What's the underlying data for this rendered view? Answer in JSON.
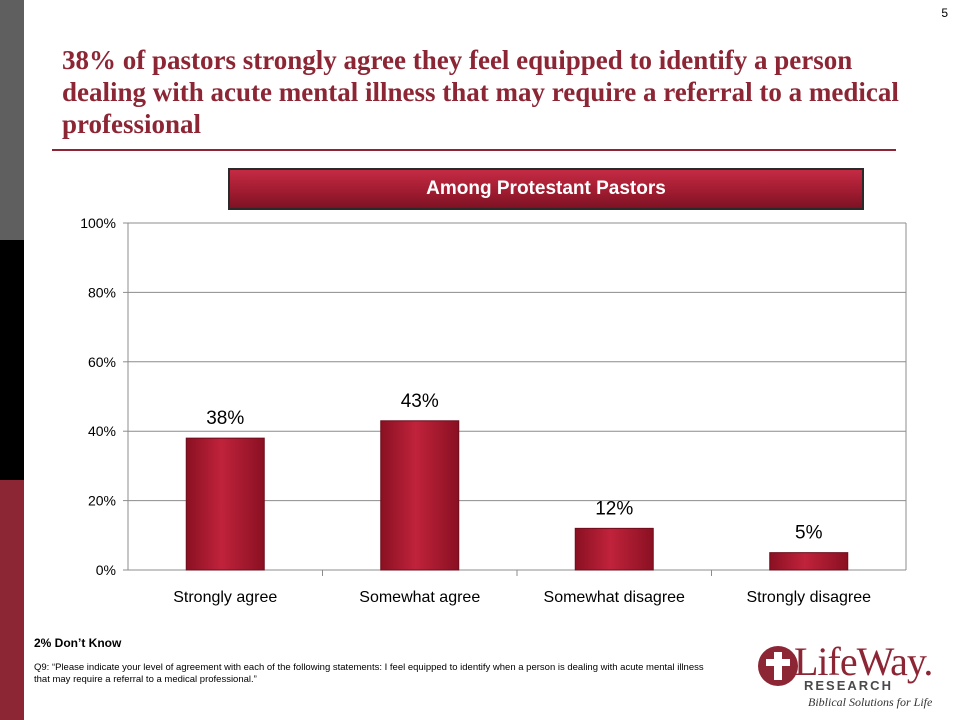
{
  "page_number": "5",
  "title": "38% of pastors strongly agree they feel equipped to identify a person dealing with acute mental illness that may require a referral to a medical professional",
  "banner": "Among Protestant Pastors",
  "footnote": "2% Don’t Know",
  "question": "Q9: “Please indicate your level of agreement with each of the following statements: I feel equipped to identify when a person is dealing with acute mental illness that may require a referral to a medical professional.”",
  "logo": {
    "name": "LifeWay.",
    "sub": "RESEARCH",
    "tagline": "Biblical Solutions for Life"
  },
  "colors": {
    "accent": "#8c2635",
    "bar": "#b0192f"
  },
  "chart_data": {
    "type": "bar",
    "categories": [
      "Strongly agree",
      "Somewhat agree",
      "Somewhat disagree",
      "Strongly disagree"
    ],
    "values": [
      38,
      43,
      12,
      5
    ],
    "data_labels": [
      "38%",
      "43%",
      "12%",
      "5%"
    ],
    "ylim": [
      0,
      100
    ],
    "yticks": [
      "0%",
      "20%",
      "40%",
      "60%",
      "80%",
      "100%"
    ],
    "grid": true,
    "legend": false
  }
}
